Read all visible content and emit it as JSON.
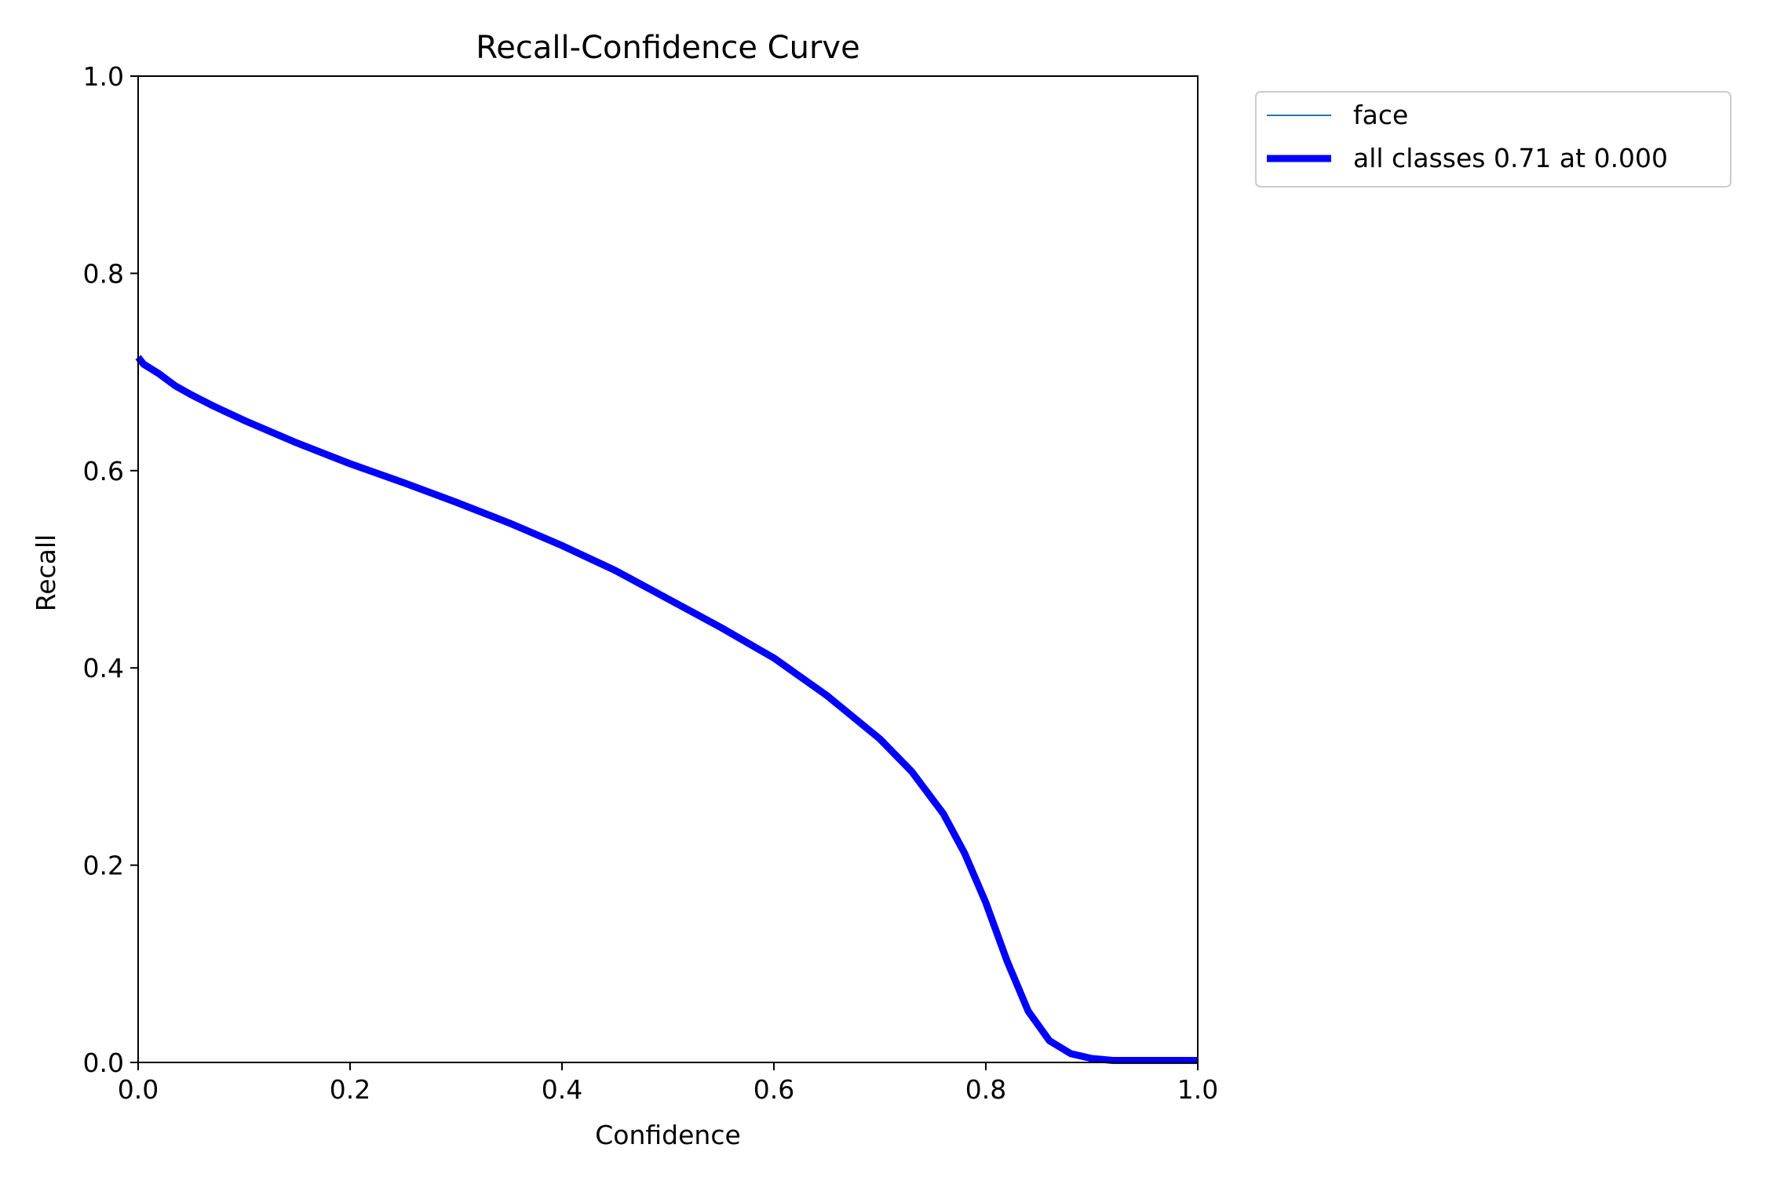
{
  "chart_data": {
    "type": "line",
    "title": "Recall-Confidence Curve",
    "xlabel": "Confidence",
    "ylabel": "Recall",
    "xlim": [
      0,
      1
    ],
    "ylim": [
      0,
      1
    ],
    "xticks": [
      "0.0",
      "0.2",
      "0.4",
      "0.6",
      "0.8",
      "1.0"
    ],
    "yticks": [
      "0.0",
      "0.2",
      "0.4",
      "0.6",
      "0.8",
      "1.0"
    ],
    "grid": false,
    "legend_position": "outside-top-right",
    "series": [
      {
        "name": "face",
        "color": "#1f77b4",
        "x": [
          0.0,
          0.005,
          0.02,
          0.035,
          0.05,
          0.07,
          0.1,
          0.15,
          0.2,
          0.25,
          0.3,
          0.35,
          0.4,
          0.45,
          0.5,
          0.55,
          0.6,
          0.65,
          0.7,
          0.73,
          0.76,
          0.78,
          0.8,
          0.82,
          0.84,
          0.86,
          0.88,
          0.9,
          0.92,
          0.95,
          1.0
        ],
        "y": [
          0.715,
          0.708,
          0.698,
          0.686,
          0.677,
          0.666,
          0.651,
          0.628,
          0.607,
          0.588,
          0.568,
          0.547,
          0.524,
          0.499,
          0.47,
          0.441,
          0.41,
          0.372,
          0.328,
          0.295,
          0.252,
          0.212,
          0.162,
          0.103,
          0.052,
          0.022,
          0.009,
          0.004,
          0.002,
          0.002,
          0.002
        ]
      },
      {
        "name": "all classes 0.71 at 0.000",
        "color": "#0000ff",
        "x": [
          0.0,
          0.005,
          0.02,
          0.035,
          0.05,
          0.07,
          0.1,
          0.15,
          0.2,
          0.25,
          0.3,
          0.35,
          0.4,
          0.45,
          0.5,
          0.55,
          0.6,
          0.65,
          0.7,
          0.73,
          0.76,
          0.78,
          0.8,
          0.82,
          0.84,
          0.86,
          0.88,
          0.9,
          0.92,
          0.95,
          1.0
        ],
        "y": [
          0.715,
          0.708,
          0.698,
          0.686,
          0.677,
          0.666,
          0.651,
          0.628,
          0.607,
          0.588,
          0.568,
          0.547,
          0.524,
          0.499,
          0.47,
          0.441,
          0.41,
          0.372,
          0.328,
          0.295,
          0.252,
          0.212,
          0.162,
          0.103,
          0.052,
          0.022,
          0.009,
          0.004,
          0.002,
          0.002,
          0.002
        ]
      }
    ]
  }
}
